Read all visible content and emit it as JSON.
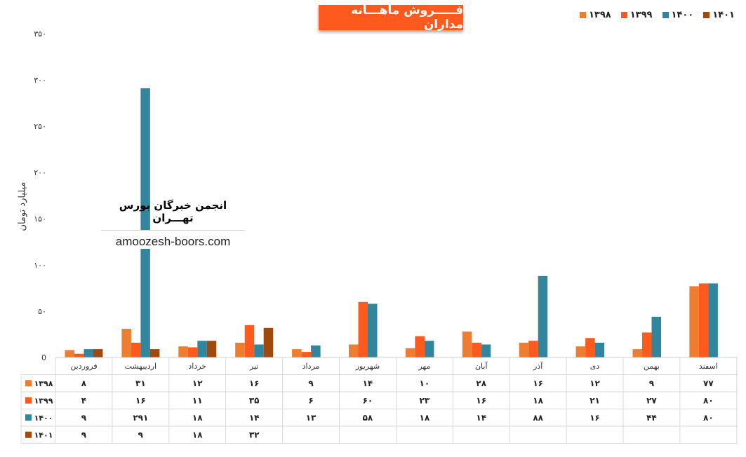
{
  "title": "فـــــروش ماهـــانه مداران",
  "ylabel": "میلیارد تومان",
  "watermark": {
    "title": "انجمن خبرگان بورس تهـــران",
    "url": "amoozesh-boors.com"
  },
  "colors": {
    "1398": "#ed7d31",
    "1399": "#fe5a1d",
    "1400": "#31859c",
    "1401": "#a0490f"
  },
  "chart_data": {
    "type": "bar",
    "categories": [
      "فروردین",
      "اردیبهشت",
      "خرداد",
      "تیر",
      "مرداد",
      "شهریور",
      "مهر",
      "آبان",
      "آذر",
      "دی",
      "بهمن",
      "اسفند"
    ],
    "series": [
      {
        "name": "۱۳۹۸",
        "key": "1398",
        "values": [
          8,
          31,
          12,
          16,
          9,
          14,
          10,
          28,
          16,
          12,
          9,
          77
        ]
      },
      {
        "name": "۱۳۹۹",
        "key": "1399",
        "values": [
          4,
          16,
          11,
          35,
          6,
          60,
          23,
          16,
          18,
          21,
          27,
          80
        ]
      },
      {
        "name": "۱۴۰۰",
        "key": "1400",
        "values": [
          9,
          291,
          18,
          14,
          13,
          58,
          18,
          14,
          88,
          16,
          44,
          80
        ]
      },
      {
        "name": "۱۴۰۱",
        "key": "1401",
        "values": [
          9,
          9,
          18,
          32,
          null,
          null,
          null,
          null,
          null,
          null,
          null,
          null
        ]
      }
    ],
    "ylim": [
      0,
      350
    ],
    "yticks": [
      0,
      50,
      100,
      150,
      200,
      250,
      300,
      350
    ],
    "ytick_labels": [
      "0",
      "۵۰",
      "۱۰۰",
      "۱۵۰",
      "۲۰۰",
      "۲۵۰",
      "۳۰۰",
      "۳۵۰"
    ],
    "table": {
      "rows": [
        [
          "۸",
          "۳۱",
          "۱۲",
          "۱۶",
          "۹",
          "۱۴",
          "۱۰",
          "۲۸",
          "۱۶",
          "۱۲",
          "۹",
          "۷۷"
        ],
        [
          "۴",
          "۱۶",
          "۱۱",
          "۳۵",
          "۶",
          "۶۰",
          "۲۳",
          "۱۶",
          "۱۸",
          "۲۱",
          "۲۷",
          "۸۰"
        ],
        [
          "۹",
          "۲۹۱",
          "۱۸",
          "۱۴",
          "۱۳",
          "۵۸",
          "۱۸",
          "۱۴",
          "۸۸",
          "۱۶",
          "۴۴",
          "۸۰"
        ],
        [
          "۹",
          "۹",
          "۱۸",
          "۳۲",
          "",
          "",
          "",
          "",
          "",
          "",
          "",
          ""
        ]
      ]
    },
    "legend_position": "top-right",
    "grid": false
  }
}
